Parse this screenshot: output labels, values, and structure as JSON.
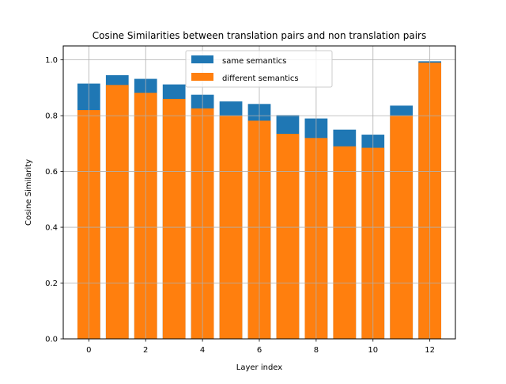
{
  "chart_data": {
    "type": "bar",
    "title": "Cosine Similarities between translation pairs and non translation pairs",
    "xlabel": "Layer index",
    "ylabel": "Cosine Similarity",
    "categories": [
      0,
      1,
      2,
      3,
      4,
      5,
      6,
      7,
      8,
      9,
      10,
      11,
      12
    ],
    "x_ticks": [
      0,
      2,
      4,
      6,
      8,
      10,
      12
    ],
    "x_tick_labels": [
      "0",
      "2",
      "4",
      "6",
      "8",
      "10",
      "12"
    ],
    "xlim": [
      -0.9,
      12.9
    ],
    "ylim": [
      0.0,
      1.05
    ],
    "y_ticks": [
      0.0,
      0.2,
      0.4,
      0.6,
      0.8,
      1.0
    ],
    "y_tick_labels": [
      "0.0",
      "0.2",
      "0.4",
      "0.6",
      "0.8",
      "1.0"
    ],
    "grid": true,
    "legend_position": "top-center",
    "series": [
      {
        "name": "same semantics",
        "color": "#1f77b4",
        "values": [
          0.915,
          0.945,
          0.932,
          0.912,
          0.875,
          0.851,
          0.842,
          0.802,
          0.79,
          0.75,
          0.732,
          0.836,
          0.995
        ]
      },
      {
        "name": "different semantics",
        "color": "#ff7f0e",
        "values": [
          0.82,
          0.91,
          0.882,
          0.86,
          0.826,
          0.8,
          0.782,
          0.735,
          0.72,
          0.69,
          0.685,
          0.8,
          0.99
        ]
      }
    ]
  }
}
